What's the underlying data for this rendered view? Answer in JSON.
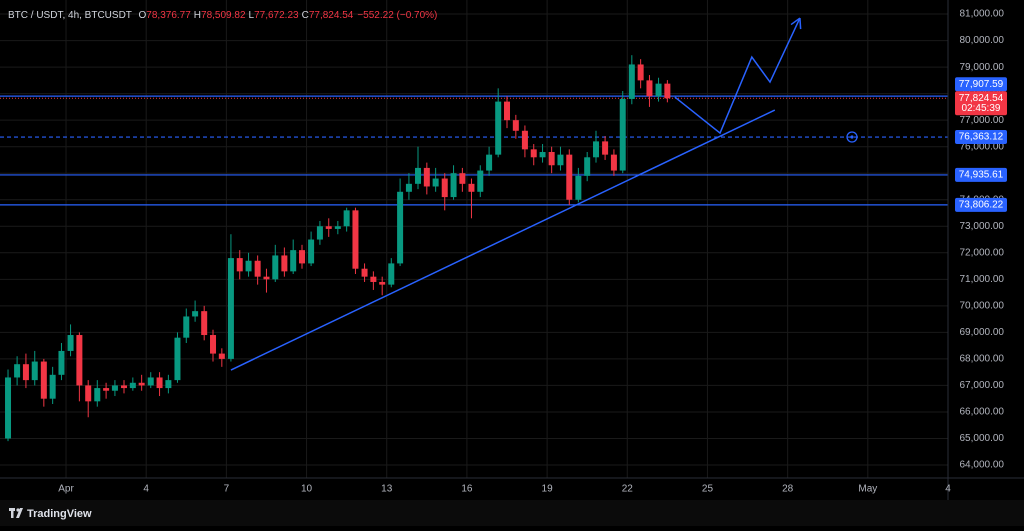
{
  "chart_data": {
    "type": "candlestick",
    "header": {
      "symbol": "BTC / USDT, 4h, BTCUSDT",
      "ohlc": [
        {
          "key": "O",
          "value": "78,376.77"
        },
        {
          "key": "H",
          "value": "78,509.82"
        },
        {
          "key": "L",
          "value": "77,672.23"
        },
        {
          "key": "C",
          "value": "77,824.54"
        }
      ],
      "change": "−552.22 (−0.70%)"
    },
    "x": [
      -1.17,
      -0.83,
      -0.5,
      -0.17,
      0.17,
      0.5,
      0.83,
      1.17,
      1.5,
      1.83,
      2.17,
      2.5,
      2.83,
      3.17,
      3.5,
      3.83,
      4.17,
      4.5,
      4.83,
      5.17,
      5.5,
      5.83,
      6.17,
      6.5,
      6.83,
      7.17,
      7.5,
      7.83,
      8.17,
      8.5,
      8.83,
      9.17,
      9.5,
      9.83,
      10.17,
      10.5,
      10.83,
      11.17,
      11.5,
      11.83,
      12.17,
      12.5,
      12.83,
      13.17,
      13.5,
      13.83,
      14.17,
      14.5,
      14.83,
      15.17,
      15.5,
      15.83,
      16.17,
      16.5,
      16.83,
      17.17,
      17.5,
      17.83,
      18.17,
      18.5,
      18.83,
      19.17,
      19.5,
      19.83,
      20.17,
      20.5,
      20.83,
      21.17,
      21.5,
      21.83,
      22.17,
      22.5,
      22.83,
      23.17,
      23.5
    ],
    "series": [
      {
        "name": "BTCUSDT",
        "up_color": "#089981",
        "down_color": "#f23645",
        "open": [
          65000,
          67300,
          67800,
          67200,
          67900,
          66500,
          67400,
          68300,
          68900,
          67000,
          66400,
          66900,
          66800,
          67000,
          66900,
          67100,
          67000,
          67300,
          66900,
          67200,
          68800,
          69600,
          69800,
          68900,
          68200,
          68000,
          71800,
          71300,
          71700,
          71100,
          71000,
          71900,
          71300,
          72100,
          71600,
          72500,
          73000,
          72900,
          73000,
          73600,
          71400,
          71100,
          70900,
          70800,
          71600,
          74300,
          74600,
          75200,
          74500,
          74800,
          74100,
          75000,
          74600,
          74300,
          75100,
          75700,
          77700,
          77000,
          76600,
          75900,
          75600,
          75800,
          75300,
          75700,
          74000,
          74900,
          75600,
          76200,
          75700,
          75100,
          77800,
          79100,
          78500,
          77900,
          78376.77
        ],
        "high": [
          67600,
          68100,
          68200,
          68300,
          68000,
          67700,
          68600,
          69300,
          69000,
          67200,
          67200,
          67100,
          67200,
          67200,
          67300,
          67400,
          67500,
          67500,
          67400,
          69000,
          69900,
          70200,
          70000,
          69100,
          68400,
          72700,
          72100,
          72000,
          71900,
          71400,
          72300,
          72200,
          72500,
          72300,
          72800,
          73200,
          73300,
          73200,
          73700,
          73700,
          71600,
          71300,
          71100,
          71800,
          74800,
          75000,
          76000,
          75400,
          75200,
          75000,
          75300,
          75200,
          74800,
          75300,
          76000,
          78200,
          77900,
          77200,
          76800,
          76100,
          76100,
          76000,
          76000,
          75900,
          75200,
          75800,
          76600,
          76400,
          75900,
          78100,
          79450,
          79300,
          78700,
          78600,
          78509.82
        ],
        "low": [
          64900,
          67000,
          66900,
          67000,
          66200,
          66300,
          67200,
          68100,
          66400,
          65800,
          66200,
          66500,
          66600,
          66700,
          66800,
          66800,
          66900,
          66600,
          66700,
          67100,
          68600,
          69400,
          68700,
          67900,
          67700,
          67900,
          71000,
          71100,
          70800,
          70500,
          70900,
          71100,
          71200,
          71400,
          71500,
          72300,
          72600,
          72700,
          72800,
          71200,
          70900,
          70600,
          70400,
          70700,
          71500,
          74000,
          74400,
          74200,
          74300,
          73600,
          74000,
          74300,
          73300,
          74100,
          74900,
          75600,
          76700,
          76300,
          75600,
          75300,
          75400,
          75000,
          75100,
          73800,
          73900,
          74700,
          75400,
          75500,
          74900,
          75000,
          77600,
          78200,
          77500,
          77700,
          77672.23
        ],
        "close": [
          67300,
          67800,
          67200,
          67900,
          66500,
          67400,
          68300,
          68900,
          67000,
          66400,
          66900,
          66800,
          67000,
          66900,
          67100,
          67000,
          67300,
          66900,
          67200,
          68800,
          69600,
          69800,
          68900,
          68200,
          68000,
          71800,
          71300,
          71700,
          71100,
          71000,
          71900,
          71300,
          72100,
          71600,
          72500,
          73000,
          72900,
          73000,
          73600,
          71400,
          71100,
          70900,
          70800,
          71600,
          74300,
          74600,
          75200,
          74500,
          74800,
          74100,
          75000,
          74600,
          74300,
          75100,
          75700,
          77700,
          77000,
          76600,
          75900,
          75600,
          75800,
          75300,
          75700,
          74000,
          74900,
          75600,
          76200,
          75700,
          75100,
          77800,
          79100,
          78500,
          77900,
          78376.77,
          77824.54
        ]
      }
    ],
    "xlim": [
      -1.47,
      34
    ],
    "xticks": [
      {
        "value": 1,
        "label": "Apr"
      },
      4,
      7,
      10,
      13,
      16,
      19,
      22,
      25,
      28,
      {
        "value": 31,
        "label": "May"
      },
      {
        "value": 34,
        "label": "4"
      }
    ],
    "ylim": [
      63510,
      81530
    ],
    "yticks": [
      {
        "value": 64000,
        "label": "64,000.00"
      },
      {
        "value": 65000,
        "label": "65,000.00"
      },
      {
        "value": 66000,
        "label": "66,000.00"
      },
      {
        "value": 67000,
        "label": "67,000.00"
      },
      {
        "value": 68000,
        "label": "68,000.00"
      },
      {
        "value": 69000,
        "label": "69,000.00"
      },
      {
        "value": 70000,
        "label": "70,000.00"
      },
      {
        "value": 71000,
        "label": "71,000.00"
      },
      {
        "value": 72000,
        "label": "72,000.00"
      },
      {
        "value": 73000,
        "label": "73,000.00"
      },
      {
        "value": 74000,
        "label": "74,000.00"
      },
      {
        "value": 75000,
        "label": "75,000.00"
      },
      {
        "value": 76000,
        "label": "76,000.00"
      },
      {
        "value": 77000,
        "label": "77,000.00"
      },
      {
        "value": 78000,
        "label": "78,000.00"
      },
      {
        "value": 79000,
        "label": "79,000.00"
      },
      {
        "value": 80000,
        "label": "80,000.00"
      },
      {
        "value": 81000,
        "label": "81,000.00"
      }
    ],
    "grid": true,
    "level_color": "#2962ff",
    "levels": [
      {
        "value": 77907.59,
        "label": "77,907.59",
        "style": "solid"
      },
      {
        "value": 76363.12,
        "label": "76,363.12",
        "style": "dashed"
      },
      {
        "value": 74935.61,
        "label": "74,935.61",
        "style": "solid"
      },
      {
        "value": 73806.22,
        "label": "73,806.22",
        "style": "solid"
      }
    ],
    "last_price": {
      "value": 77824.54,
      "label": "77,824.54",
      "countdown": "02:45:39",
      "color": "#f23645"
    },
    "drawings": {
      "color": "#2962ff",
      "trendline": {
        "points": [
          [
            7.17,
            67581
          ],
          [
            27.52,
            77381
          ]
        ]
      },
      "projection": {
        "points": [
          [
            23.78,
            77871
          ],
          [
            25.47,
            76514
          ],
          [
            26.66,
            79379
          ],
          [
            27.34,
            78437
          ],
          [
            28.46,
            80849
          ]
        ]
      }
    }
  },
  "brand": "TradingView"
}
